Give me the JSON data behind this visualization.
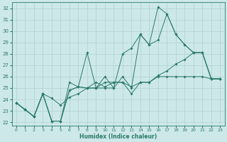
{
  "xlabel": "Humidex (Indice chaleur)",
  "ylabel": "",
  "xlim": [
    -0.5,
    23.5
  ],
  "ylim": [
    21.7,
    32.5
  ],
  "yticks": [
    22,
    23,
    24,
    25,
    26,
    27,
    28,
    29,
    30,
    31,
    32
  ],
  "xticks": [
    0,
    1,
    2,
    3,
    4,
    5,
    6,
    7,
    8,
    9,
    10,
    11,
    12,
    13,
    14,
    15,
    16,
    17,
    18,
    19,
    20,
    21,
    22,
    23
  ],
  "bg_color": "#cde8e8",
  "grid_color": "#b0d0d0",
  "line_color": "#2a7a6a",
  "lines": [
    [
      23.7,
      23.1,
      22.5,
      24.5,
      22.1,
      22.1,
      24.8,
      25.1,
      28.1,
      25.0,
      25.0,
      25.0,
      28.0,
      28.5,
      29.7,
      28.8,
      32.1,
      31.5,
      29.7,
      28.8,
      28.1,
      28.1,
      25.8,
      25.8
    ],
    [
      23.7,
      23.1,
      22.5,
      24.5,
      22.1,
      22.1,
      24.8,
      25.1,
      25.0,
      25.0,
      26.0,
      25.0,
      26.0,
      25.0,
      29.7,
      28.8,
      29.2,
      31.5,
      29.7,
      28.8,
      28.1,
      28.1,
      25.8,
      25.8
    ],
    [
      23.7,
      23.1,
      22.5,
      24.5,
      22.1,
      22.1,
      25.5,
      25.1,
      25.0,
      25.0,
      25.5,
      25.5,
      25.5,
      24.5,
      25.5,
      25.5,
      26.0,
      26.0,
      26.0,
      26.0,
      26.0,
      26.0,
      25.8,
      25.8
    ],
    [
      23.7,
      23.1,
      22.5,
      24.5,
      24.1,
      23.5,
      24.2,
      24.5,
      25.0,
      25.5,
      25.1,
      25.5,
      25.5,
      25.1,
      25.5,
      25.5,
      26.1,
      26.5,
      27.1,
      27.5,
      28.1,
      28.1,
      25.8,
      25.8
    ]
  ]
}
